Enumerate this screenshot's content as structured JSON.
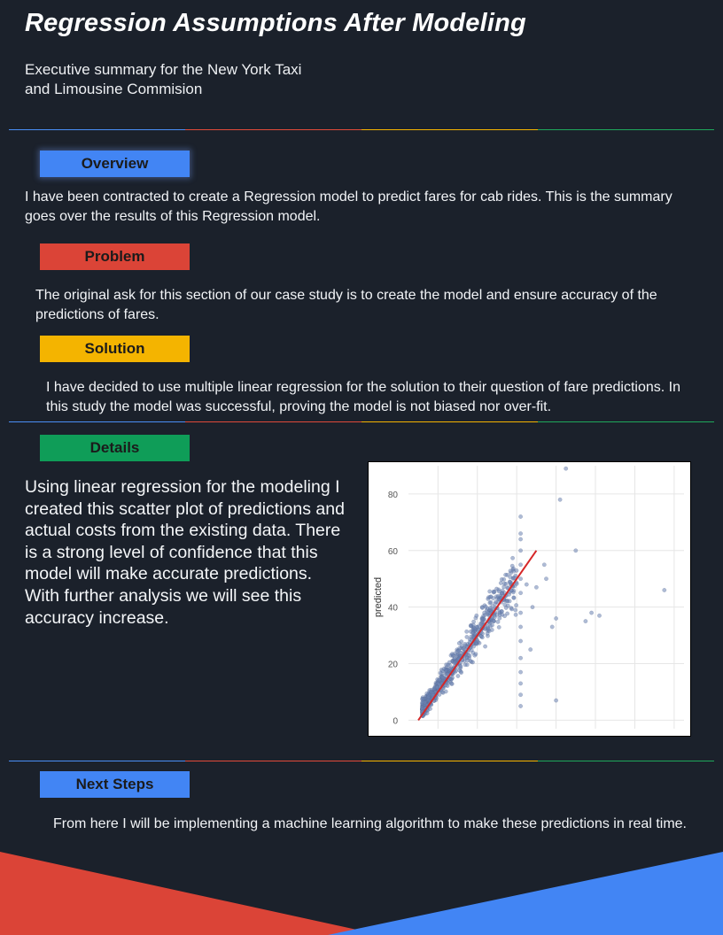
{
  "header": {
    "title": "Regression Assumptions After Modeling",
    "subtitle_line1": "Executive summary for the New York Taxi",
    "subtitle_line2": "and Limousine Commision"
  },
  "sections": {
    "overview": {
      "label": "Overview",
      "text": "I have been contracted to create a Regression model to predict fares for cab rides. This is the summary goes over the results of this Regression model."
    },
    "problem": {
      "label": "Problem",
      "text": "The original ask for this section of our case study is to create the model and ensure accuracy of the predictions of fares."
    },
    "solution": {
      "label": "Solution",
      "text": "I have decided to use multiple linear regression for the solution to their question of fare predictions. In this study the model was successful, proving the model is not biased nor over-fit."
    },
    "details": {
      "label": "Details",
      "text": "Using linear regression for the modeling I created this scatter plot of predictions and actual costs from the existing data. There is a strong level of confidence that this model will make accurate predictions.",
      "text2": "With further analysis we will see this accuracy increase."
    },
    "next_steps": {
      "label": "Next Steps",
      "text": "From here I will be implementing a machine learning algorithm to make these predictions in real time."
    }
  },
  "colors": {
    "background": "#1b212b",
    "blue": "#4285f4",
    "red": "#db4437",
    "yellow": "#f4b400",
    "green": "#0f9d58"
  },
  "chart_data": {
    "type": "scatter",
    "ylabel": "predicted",
    "xlabel": "",
    "ylim": [
      -3,
      90
    ],
    "xlim": [
      -5,
      135
    ],
    "y_ticks": [
      0,
      20,
      40,
      60,
      80
    ],
    "x_gridlines": [
      10,
      30,
      50,
      70,
      90,
      110,
      130
    ],
    "grid": true,
    "point_color": "#6b83b3",
    "fit_line": {
      "color": "#d62728",
      "x": [
        0,
        60
      ],
      "y": [
        0,
        60
      ]
    },
    "outliers": [
      [
        52,
        72
      ],
      [
        52,
        66
      ],
      [
        52,
        64
      ],
      [
        52,
        60
      ],
      [
        52,
        55
      ],
      [
        52,
        50
      ],
      [
        52,
        45
      ],
      [
        52,
        38
      ],
      [
        52,
        33
      ],
      [
        52,
        28
      ],
      [
        52,
        22
      ],
      [
        52,
        17
      ],
      [
        52,
        13
      ],
      [
        52,
        9
      ],
      [
        52,
        5
      ],
      [
        72,
        78
      ],
      [
        64,
        55
      ],
      [
        60,
        47
      ],
      [
        65,
        50
      ],
      [
        70,
        36
      ],
      [
        68,
        33
      ],
      [
        85,
        35
      ],
      [
        92,
        37
      ],
      [
        70,
        7
      ],
      [
        75,
        89
      ],
      [
        125,
        46
      ],
      [
        88,
        38
      ],
      [
        55,
        48
      ],
      [
        80,
        60
      ],
      [
        57,
        25
      ],
      [
        58,
        40
      ]
    ]
  }
}
